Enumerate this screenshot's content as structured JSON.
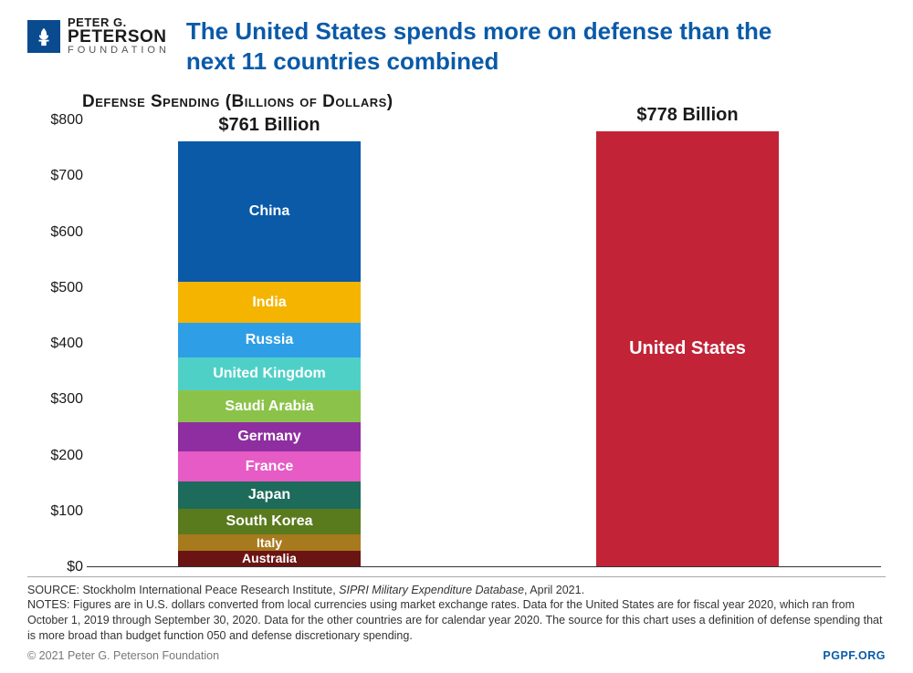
{
  "logo": {
    "line1": "PETER G.",
    "line2": "PETERSON",
    "line3": "FOUNDATION",
    "mark_bg": "#0a4a8f",
    "mark_fg": "#ffffff"
  },
  "title": "The United States spends more on defense than the next 11 countries combined",
  "title_color": "#0a5aa8",
  "subtitle": "Defense Spending (Billions of Dollars)",
  "chart": {
    "type": "stacked-bar",
    "ylim": [
      0,
      800
    ],
    "ytick_step": 100,
    "y_prefix": "$",
    "background": "#ffffff",
    "axis_color": "#333333",
    "label_fontsize": 16,
    "total_label_fontsize": 20,
    "bars": [
      {
        "name": "combined",
        "total_label": "$761 Billion",
        "total_value": 761,
        "segments": [
          {
            "label": "China",
            "value": 252,
            "color": "#0a5aa8",
            "text_color": "#ffffff"
          },
          {
            "label": "India",
            "value": 73,
            "color": "#f4b400",
            "text_color": "#ffffff"
          },
          {
            "label": "Russia",
            "value": 62,
            "color": "#2e9ee6",
            "text_color": "#ffffff"
          },
          {
            "label": "United Kingdom",
            "value": 59,
            "color": "#4fd0c7",
            "text_color": "#ffffff"
          },
          {
            "label": "Saudi Arabia",
            "value": 57,
            "color": "#8bc34a",
            "text_color": "#ffffff"
          },
          {
            "label": "Germany",
            "value": 53,
            "color": "#8e2ea0",
            "text_color": "#ffffff"
          },
          {
            "label": "France",
            "value": 53,
            "color": "#e65bc5",
            "text_color": "#ffffff"
          },
          {
            "label": "Japan",
            "value": 49,
            "color": "#1d6b5b",
            "text_color": "#ffffff"
          },
          {
            "label": "South Korea",
            "value": 46,
            "color": "#5a7a1e",
            "text_color": "#ffffff"
          },
          {
            "label": "Italy",
            "value": 29,
            "color": "#a87a1e",
            "text_color": "#ffffff"
          },
          {
            "label": "Australia",
            "value": 28,
            "color": "#6b1414",
            "text_color": "#ffffff"
          }
        ]
      },
      {
        "name": "united-states",
        "total_label": "$778 Billion",
        "total_value": 778,
        "segments": [
          {
            "label": "United States",
            "value": 778,
            "color": "#c22336",
            "text_color": "#ffffff"
          }
        ]
      }
    ]
  },
  "footer": {
    "source_label": "SOURCE:",
    "source_text": "Stockholm International Peace Research Institute,",
    "source_italic": "SIPRI Military Expenditure Database",
    "source_suffix": ", April 2021.",
    "notes_label": "NOTES:",
    "notes_text": "Figures are in U.S. dollars converted from local currencies using market exchange rates. Data for the United States are for fiscal year 2020, which ran from October 1, 2019 through September 30, 2020. Data for the other countries are for calendar year 2020. The source for this chart uses a definition of defense spending that is more broad than budget function 050 and defense discretionary spending.",
    "copyright": "© 2021 Peter G. Peterson Foundation",
    "site": "PGPF.ORG"
  }
}
